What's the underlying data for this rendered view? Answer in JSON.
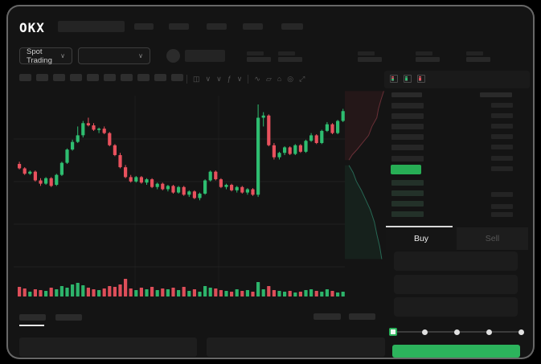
{
  "header": {
    "logo": "OKX",
    "nav_placeholder_count": 5
  },
  "ticker": {
    "market_selector_label": "Spot Trading",
    "chevron": "∨",
    "stat_pair_count": 5
  },
  "toolbar": {
    "placeholder_count": 10,
    "icons": [
      {
        "name": "candle-style-icon",
        "glyph": "◫"
      },
      {
        "name": "candle-style-dropdown-icon",
        "glyph": "∨"
      },
      {
        "name": "overlay-dropdown-icon",
        "glyph": "∨"
      },
      {
        "name": "indicators-icon",
        "glyph": "ƒ"
      },
      {
        "name": "indicators-dropdown-icon",
        "glyph": "∨"
      },
      {
        "name": "line-tool-icon",
        "glyph": "∿"
      },
      {
        "name": "layers-icon",
        "glyph": "▱"
      },
      {
        "name": "camera-icon",
        "glyph": "⌂"
      },
      {
        "name": "chart-settings-icon",
        "glyph": "◎"
      },
      {
        "name": "fullscreen-icon",
        "glyph": "⤢"
      }
    ]
  },
  "orderbook": {
    "view_icons": [
      {
        "name": "orderbook-split-view-icon",
        "top": "#e8515d",
        "bottom": "#2ebd70"
      },
      {
        "name": "orderbook-bids-view-icon",
        "top": "#2ebd70",
        "bottom": "#2ebd70"
      },
      {
        "name": "orderbook-asks-view-icon",
        "top": "#e8515d",
        "bottom": "#e8515d"
      }
    ],
    "ask_row_count": 6,
    "bid_row_count": 4,
    "right_column_top_row_count": 7,
    "right_column_bottom_row_count": 3,
    "last_price_color": "#27ae55"
  },
  "trade_panel": {
    "tabs": [
      {
        "label": "Buy"
      },
      {
        "label": "Sell"
      }
    ],
    "input_placeholder_count": 3,
    "slider": {
      "stop_count": 5,
      "active_index": 0
    },
    "submit_button_color": "#2cb35c"
  },
  "bottom_bar": {
    "tab_placeholder_count": 2,
    "right_placeholder_count": 2,
    "panel_count": 2
  },
  "colors": {
    "up": "#2ebd70",
    "down": "#e8515d",
    "accent_green": "#2cb35c"
  },
  "chart_data": [
    {
      "type": "candlestick",
      "title": "",
      "note": "unlabeled skeleton price chart, normalized price scale 0-100, no axis labels visible",
      "up_color": "#2ebd70",
      "down_color": "#e8515d",
      "grid": true,
      "ohlc": [
        [
          46,
          48,
          41,
          42
        ],
        [
          42,
          43,
          36,
          37
        ],
        [
          37,
          40,
          36,
          39
        ],
        [
          39,
          40,
          30,
          31
        ],
        [
          31,
          33,
          26,
          28
        ],
        [
          28,
          34,
          27,
          33
        ],
        [
          33,
          34,
          25,
          26
        ],
        [
          27,
          37,
          26,
          36
        ],
        [
          36,
          48,
          35,
          47
        ],
        [
          47,
          60,
          46,
          59
        ],
        [
          59,
          68,
          58,
          66
        ],
        [
          66,
          80,
          65,
          72
        ],
        [
          72,
          85,
          70,
          83
        ],
        [
          83,
          88,
          80,
          81
        ],
        [
          81,
          83,
          76,
          77
        ],
        [
          77,
          79,
          74,
          78
        ],
        [
          78,
          80,
          73,
          74
        ],
        [
          74,
          75,
          62,
          63
        ],
        [
          63,
          64,
          53,
          54
        ],
        [
          54,
          56,
          42,
          43
        ],
        [
          43,
          45,
          33,
          34
        ],
        [
          34,
          36,
          29,
          30
        ],
        [
          30,
          35,
          29,
          34
        ],
        [
          34,
          35,
          28,
          29
        ],
        [
          29,
          33,
          27,
          32
        ],
        [
          32,
          33,
          24,
          25
        ],
        [
          25,
          29,
          23,
          28
        ],
        [
          28,
          29,
          22,
          23
        ],
        [
          23,
          27,
          21,
          26
        ],
        [
          26,
          27,
          19,
          20
        ],
        [
          20,
          26,
          19,
          25
        ],
        [
          25,
          26,
          17,
          18
        ],
        [
          18,
          22,
          16,
          21
        ],
        [
          21,
          22,
          14,
          15
        ],
        [
          15,
          20,
          13,
          19
        ],
        [
          19,
          32,
          18,
          31
        ],
        [
          31,
          40,
          30,
          39
        ],
        [
          39,
          40,
          31,
          32
        ],
        [
          32,
          33,
          24,
          25
        ],
        [
          25,
          28,
          23,
          27
        ],
        [
          27,
          28,
          21,
          22
        ],
        [
          22,
          26,
          20,
          25
        ],
        [
          25,
          26,
          19,
          20
        ],
        [
          20,
          24,
          18,
          23
        ],
        [
          23,
          24,
          17,
          18
        ],
        [
          18,
          100,
          16,
          88
        ],
        [
          88,
          93,
          80,
          90
        ],
        [
          90,
          91,
          62,
          63
        ],
        [
          63,
          65,
          50,
          52
        ],
        [
          52,
          57,
          50,
          56
        ],
        [
          56,
          62,
          54,
          61
        ],
        [
          61,
          62,
          54,
          55
        ],
        [
          55,
          64,
          54,
          63
        ],
        [
          63,
          64,
          56,
          57
        ],
        [
          57,
          68,
          56,
          67
        ],
        [
          67,
          74,
          66,
          72
        ],
        [
          72,
          73,
          64,
          65
        ],
        [
          65,
          77,
          64,
          76
        ],
        [
          76,
          84,
          75,
          82
        ],
        [
          82,
          83,
          73,
          74
        ],
        [
          74,
          86,
          73,
          85
        ],
        [
          85,
          96,
          84,
          94
        ]
      ]
    },
    {
      "type": "bar",
      "note": "volume bars under price chart; heights in px, color follows candle direction",
      "values": [
        12,
        10,
        6,
        9,
        8,
        7,
        11,
        9,
        13,
        11,
        15,
        17,
        14,
        11,
        9,
        8,
        10,
        13,
        12,
        15,
        22,
        10,
        8,
        11,
        9,
        12,
        8,
        10,
        9,
        11,
        8,
        12,
        7,
        9,
        6,
        13,
        11,
        10,
        8,
        7,
        6,
        9,
        7,
        8,
        6,
        18,
        9,
        13,
        8,
        7,
        6,
        7,
        5,
        6,
        8,
        9,
        7,
        6,
        9,
        7,
        5,
        6
      ]
    },
    {
      "type": "area",
      "note": "vertical market-depth preview on right edge of chart; normalized coordinates",
      "asks_color": "#8a3b44",
      "bids_color": "#2c7a63",
      "asks_line": [
        [
          0.95,
          0.02
        ],
        [
          0.88,
          0.07
        ],
        [
          0.82,
          0.12
        ],
        [
          0.78,
          0.17
        ],
        [
          0.66,
          0.22
        ],
        [
          0.58,
          0.27
        ],
        [
          0.44,
          0.31
        ],
        [
          0.3,
          0.35
        ],
        [
          0.18,
          0.38
        ],
        [
          0.1,
          0.41
        ]
      ],
      "bids_line": [
        [
          0.1,
          0.44
        ],
        [
          0.2,
          0.48
        ],
        [
          0.28,
          0.53
        ],
        [
          0.4,
          0.58
        ],
        [
          0.5,
          0.63
        ],
        [
          0.62,
          0.69
        ],
        [
          0.72,
          0.76
        ],
        [
          0.78,
          0.83
        ],
        [
          0.85,
          0.9
        ],
        [
          0.9,
          0.97
        ]
      ]
    }
  ]
}
